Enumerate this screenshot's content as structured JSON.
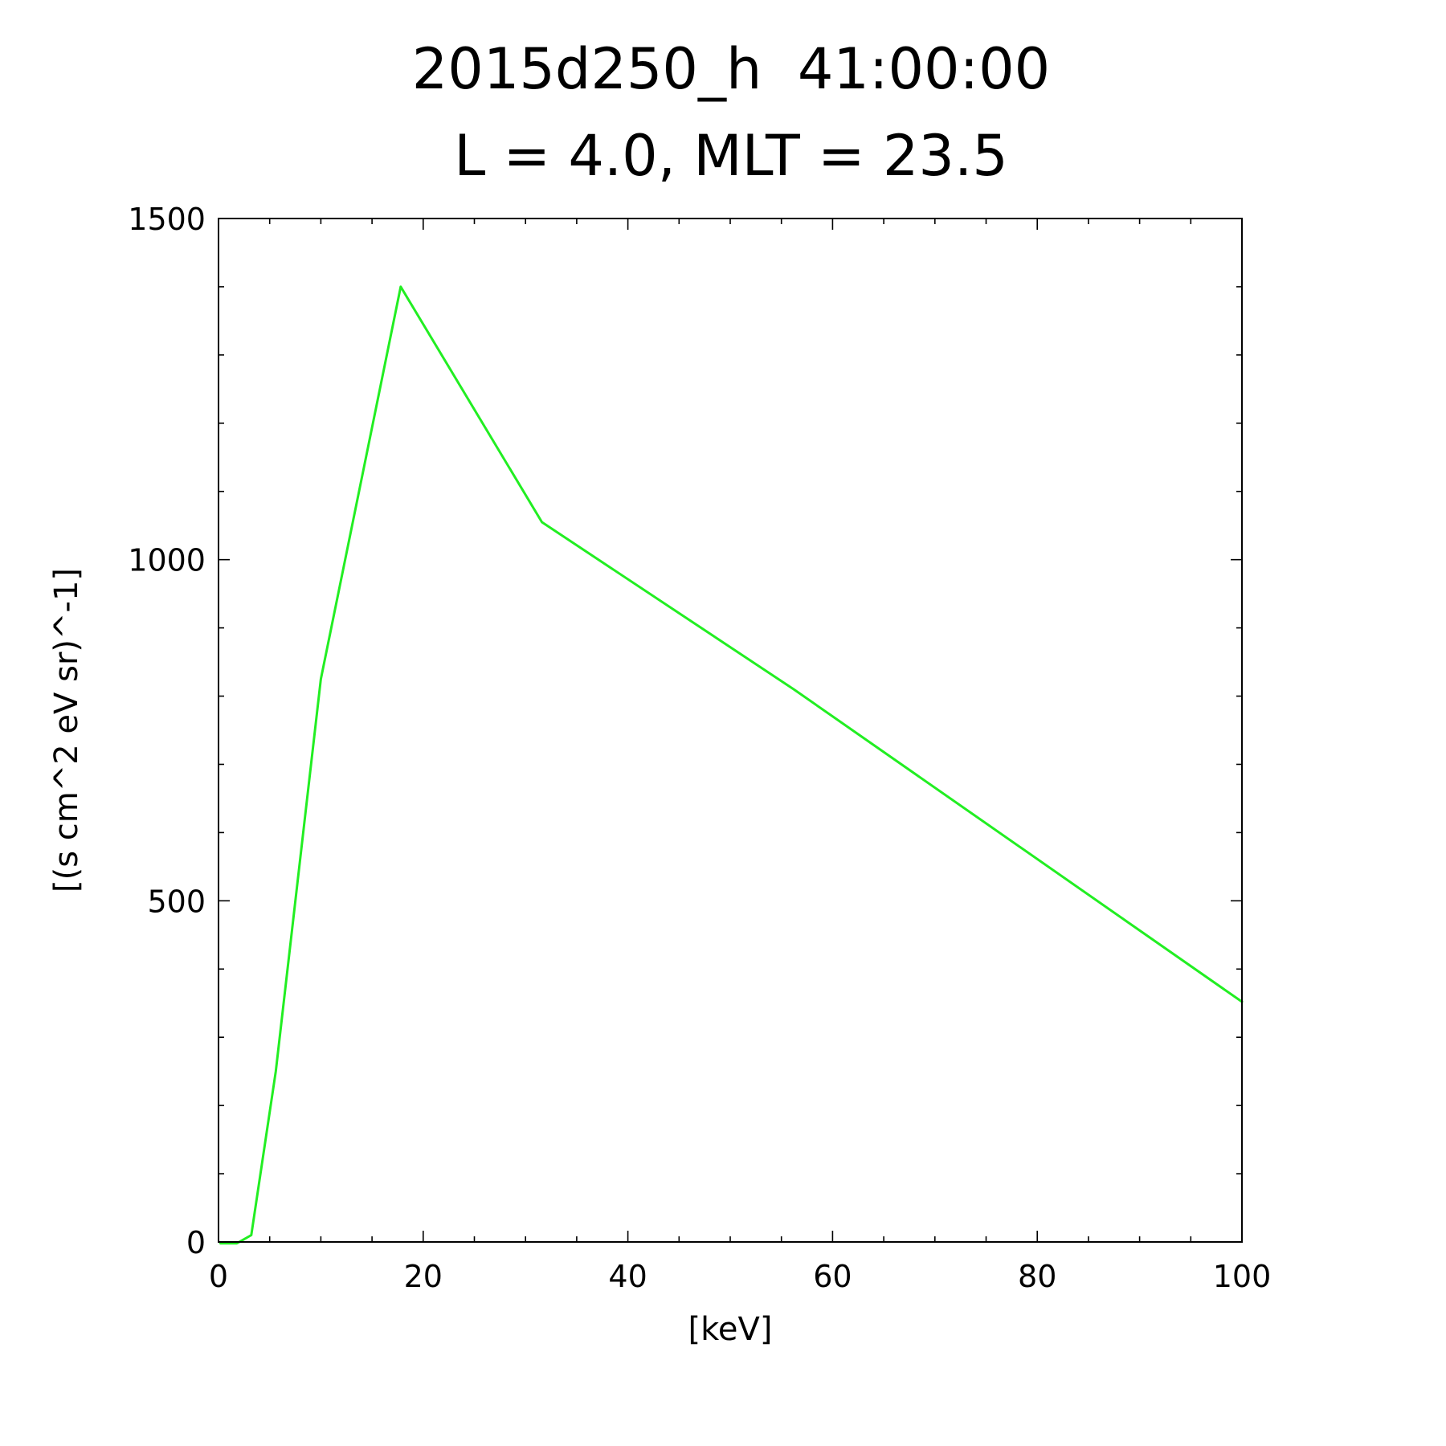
{
  "chart_data": {
    "type": "line",
    "title": "2015d250_h  41:00:00",
    "subtitle": "L = 4.0, MLT = 23.5",
    "xlabel": "[keV]",
    "ylabel": "[(s cm^2 eV sr)^-1]",
    "xlim": [
      0,
      100
    ],
    "ylim": [
      0,
      1500
    ],
    "x_ticks": [
      0,
      20,
      40,
      60,
      80,
      100
    ],
    "x_tick_labels": [
      "0",
      "20",
      "40",
      "60",
      "80",
      "100"
    ],
    "x_minor_step": 5,
    "y_ticks": [
      0,
      500,
      1000,
      1500
    ],
    "y_tick_labels": [
      "0",
      "500",
      "1000",
      "1500"
    ],
    "y_minor_step": 100,
    "grid": false,
    "series": [
      {
        "color": "#22ee22",
        "x": [
          0.2,
          1.8,
          3.2,
          5.6,
          10.0,
          17.8,
          31.6,
          56.2,
          100.0
        ],
        "y": [
          -2,
          -2,
          10,
          250,
          825,
          1400,
          1055,
          810,
          352
        ]
      }
    ]
  }
}
